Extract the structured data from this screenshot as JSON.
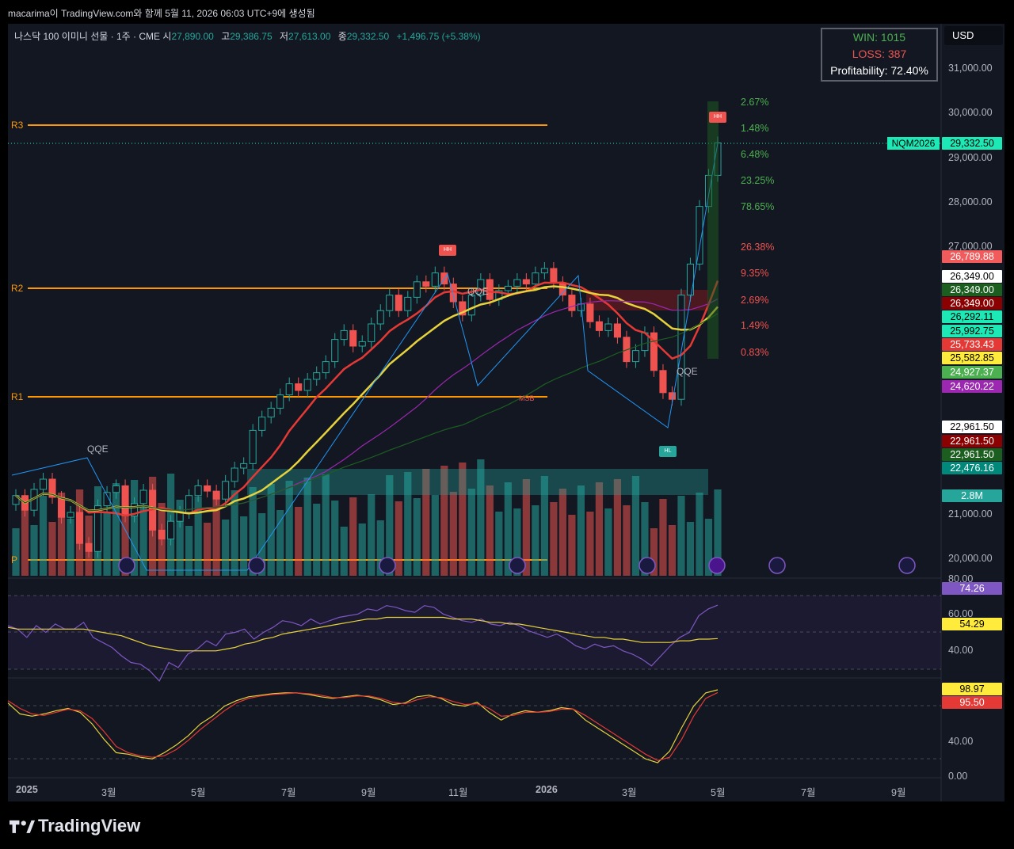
{
  "caption": "macarima이 TradingView.com와 함께 5월 11, 2026 06:03 UTC+9에 생성됨",
  "header": {
    "symbol": "나스닥 100 이미니 선물 · 1주 · CME",
    "o_label": "시",
    "o": "27,890.00",
    "h_label": "고",
    "h": "29,386.75",
    "l_label": "저",
    "l": "27,613.00",
    "c_label": "종",
    "c": "29,332.50",
    "change": "+1,496.75 (+5.38%)"
  },
  "winbox": {
    "win": "WIN: 1015",
    "loss": "LOSS: 387",
    "profit": "Profitability: 72.40%"
  },
  "currency": "USD",
  "symbol_badge": "NQM2026",
  "pivots": {
    "r3": "R3",
    "r2": "R2",
    "r1": "R1",
    "p": "P"
  },
  "annotations": {
    "qqe1": "QQE",
    "qqe2": "QQE",
    "qqe3": "QQE",
    "hh1": "HH",
    "hh2": "HH",
    "hl": "HL",
    "msb": "MSB"
  },
  "fib_levels": [
    "2.67%",
    "1.48%",
    "6.48%",
    "23.25%",
    "78.65%",
    "26.38%",
    "9.35%",
    "2.69%",
    "1.49%",
    "0.83%"
  ],
  "price_badges": [
    {
      "text": "29,332.50",
      "bg": "#1de9b6",
      "fg": "#000000"
    },
    {
      "text": "26,789.88",
      "bg": "#f15b5b",
      "fg": "#ffffff"
    },
    {
      "text": "26,349.00",
      "bg": "#ffffff",
      "fg": "#000000"
    },
    {
      "text": "26,349.00",
      "bg": "#1b5e20",
      "fg": "#ffffff"
    },
    {
      "text": "26,349.00",
      "bg": "#8b0000",
      "fg": "#ffffff"
    },
    {
      "text": "26,292.11",
      "bg": "#1de9b6",
      "fg": "#000000"
    },
    {
      "text": "25,992.75",
      "bg": "#1de9b6",
      "fg": "#000000"
    },
    {
      "text": "25,733.43",
      "bg": "#e53935",
      "fg": "#ffffff"
    },
    {
      "text": "25,582.85",
      "bg": "#ffeb3b",
      "fg": "#000000"
    },
    {
      "text": "24,927.37",
      "bg": "#4caf50",
      "fg": "#ffffff"
    },
    {
      "text": "24,620.22",
      "bg": "#9c27b0",
      "fg": "#ffffff"
    },
    {
      "text": "22,961.50",
      "bg": "#ffffff",
      "fg": "#000000"
    },
    {
      "text": "22,961.50",
      "bg": "#8b0000",
      "fg": "#ffffff"
    },
    {
      "text": "22,961.50",
      "bg": "#1b5e20",
      "fg": "#ffffff"
    },
    {
      "text": "22,476.16",
      "bg": "#00897b",
      "fg": "#ffffff"
    },
    {
      "text": "2.8M",
      "bg": "#26a69a",
      "fg": "#ffffff"
    },
    {
      "text": "74.26",
      "bg": "#7e57c2",
      "fg": "#ffffff"
    },
    {
      "text": "54.29",
      "bg": "#ffeb3b",
      "fg": "#000000"
    },
    {
      "text": "98.97",
      "bg": "#ffeb3b",
      "fg": "#000000"
    },
    {
      "text": "95.50",
      "bg": "#e53935",
      "fg": "#ffffff"
    }
  ],
  "logo": "TradingView",
  "chart_data": [
    {
      "type": "candlestick",
      "title": "",
      "y_axis_ticks": [
        "31,000.00",
        "30,000.00",
        "29,000.00",
        "28,000.00",
        "27,000.00",
        "21,000.00",
        "20,000.00"
      ],
      "x_axis_ticks": [
        "2025",
        "3월",
        "5월",
        "7월",
        "9월",
        "11월",
        "2026",
        "3월",
        "5월",
        "7월",
        "9월"
      ],
      "ylim": [
        19800,
        31800
      ],
      "pivot_levels": {
        "R3": 30230,
        "R2": 26590,
        "R1": 24170,
        "P": 20000
      },
      "close_series": [
        21380,
        21050,
        21520,
        21750,
        21340,
        20890,
        21000,
        20300,
        20120,
        21150,
        21450,
        21600,
        20920,
        21200,
        21500,
        20600,
        20400,
        20800,
        21000,
        21380,
        21600,
        21480,
        21300,
        21700,
        22000,
        22100,
        22850,
        23150,
        23350,
        23650,
        23900,
        23750,
        24000,
        24150,
        24400,
        24900,
        25100,
        24750,
        24850,
        25250,
        25550,
        25900,
        25550,
        25850,
        26200,
        26100,
        26400,
        26150,
        25750,
        25450,
        25900,
        26250,
        25800,
        26000,
        26100,
        26250,
        26150,
        26400,
        26500,
        26180,
        25900,
        25550,
        25700,
        25300,
        25100,
        25250,
        24950,
        24400,
        24650,
        25050,
        24200,
        23700,
        23550,
        25900,
        26600,
        27900,
        28600,
        29332.5
      ],
      "volume_unit": "M",
      "last_volume": 2.8
    },
    {
      "type": "line",
      "title": "",
      "y_axis_ticks": [
        "80.00",
        "60.00",
        "40.00"
      ],
      "ylim": [
        28,
        80
      ],
      "series": [
        {
          "color": "#7e57c2",
          "values": [
            62,
            60,
            55,
            62,
            58,
            63,
            60,
            60,
            64,
            55,
            52,
            49,
            44,
            40,
            39,
            35,
            29,
            40,
            37,
            45,
            48,
            53,
            50,
            57,
            58,
            60,
            54,
            58,
            61,
            65,
            64,
            62,
            66,
            63,
            65,
            67,
            68,
            69,
            72,
            71,
            74,
            73,
            71,
            70,
            74,
            73,
            69,
            67,
            65,
            64,
            66,
            63,
            62,
            64,
            62,
            59,
            57,
            55,
            57,
            54,
            50,
            48,
            51,
            49,
            50,
            47,
            45,
            42,
            38,
            44,
            50,
            55,
            58,
            68,
            72,
            74.26
          ]
        },
        {
          "color": "#e6d23c",
          "values": [
            61,
            60,
            60,
            60,
            60,
            60,
            60,
            60,
            60,
            59,
            58,
            57,
            56,
            54,
            52,
            50,
            49,
            48,
            47,
            47,
            47,
            47,
            47,
            48,
            49,
            51,
            52,
            54,
            55,
            57,
            58,
            59,
            60,
            61,
            62,
            63,
            64,
            65,
            66,
            66,
            67,
            67,
            67,
            67,
            67,
            67,
            67,
            66,
            66,
            66,
            65,
            64,
            64,
            63,
            63,
            62,
            61,
            60,
            59,
            58,
            57,
            56,
            55,
            55,
            54,
            54,
            53,
            52,
            52,
            52,
            52,
            53,
            53,
            54,
            54,
            54.29
          ]
        }
      ]
    },
    {
      "type": "line",
      "title": "",
      "y_axis_ticks": [
        "40.00",
        "0.00"
      ],
      "ylim": [
        -5,
        103
      ],
      "series": [
        {
          "color": "#e6d23c",
          "values": [
            82,
            68,
            65,
            68,
            72,
            75,
            70,
            55,
            35,
            18,
            16,
            12,
            10,
            18,
            28,
            40,
            55,
            65,
            78,
            85,
            90,
            92,
            94,
            95,
            95,
            93,
            90,
            88,
            90,
            92,
            90,
            86,
            80,
            82,
            90,
            92,
            88,
            80,
            78,
            83,
            70,
            60,
            68,
            72,
            70,
            72,
            76,
            74,
            60,
            50,
            40,
            30,
            20,
            10,
            5,
            20,
            50,
            78,
            95,
            98.97
          ]
        },
        {
          "color": "#e53935",
          "values": [
            85,
            75,
            68,
            66,
            70,
            74,
            72,
            62,
            45,
            26,
            18,
            14,
            12,
            14,
            22,
            34,
            48,
            60,
            72,
            82,
            88,
            91,
            93,
            94,
            95,
            94,
            92,
            89,
            89,
            91,
            91,
            88,
            83,
            81,
            86,
            90,
            89,
            84,
            80,
            81,
            75,
            65,
            66,
            70,
            70,
            71,
            74,
            74,
            66,
            56,
            46,
            36,
            26,
            16,
            8,
            12,
            35,
            65,
            88,
            95.5
          ]
        }
      ]
    }
  ]
}
